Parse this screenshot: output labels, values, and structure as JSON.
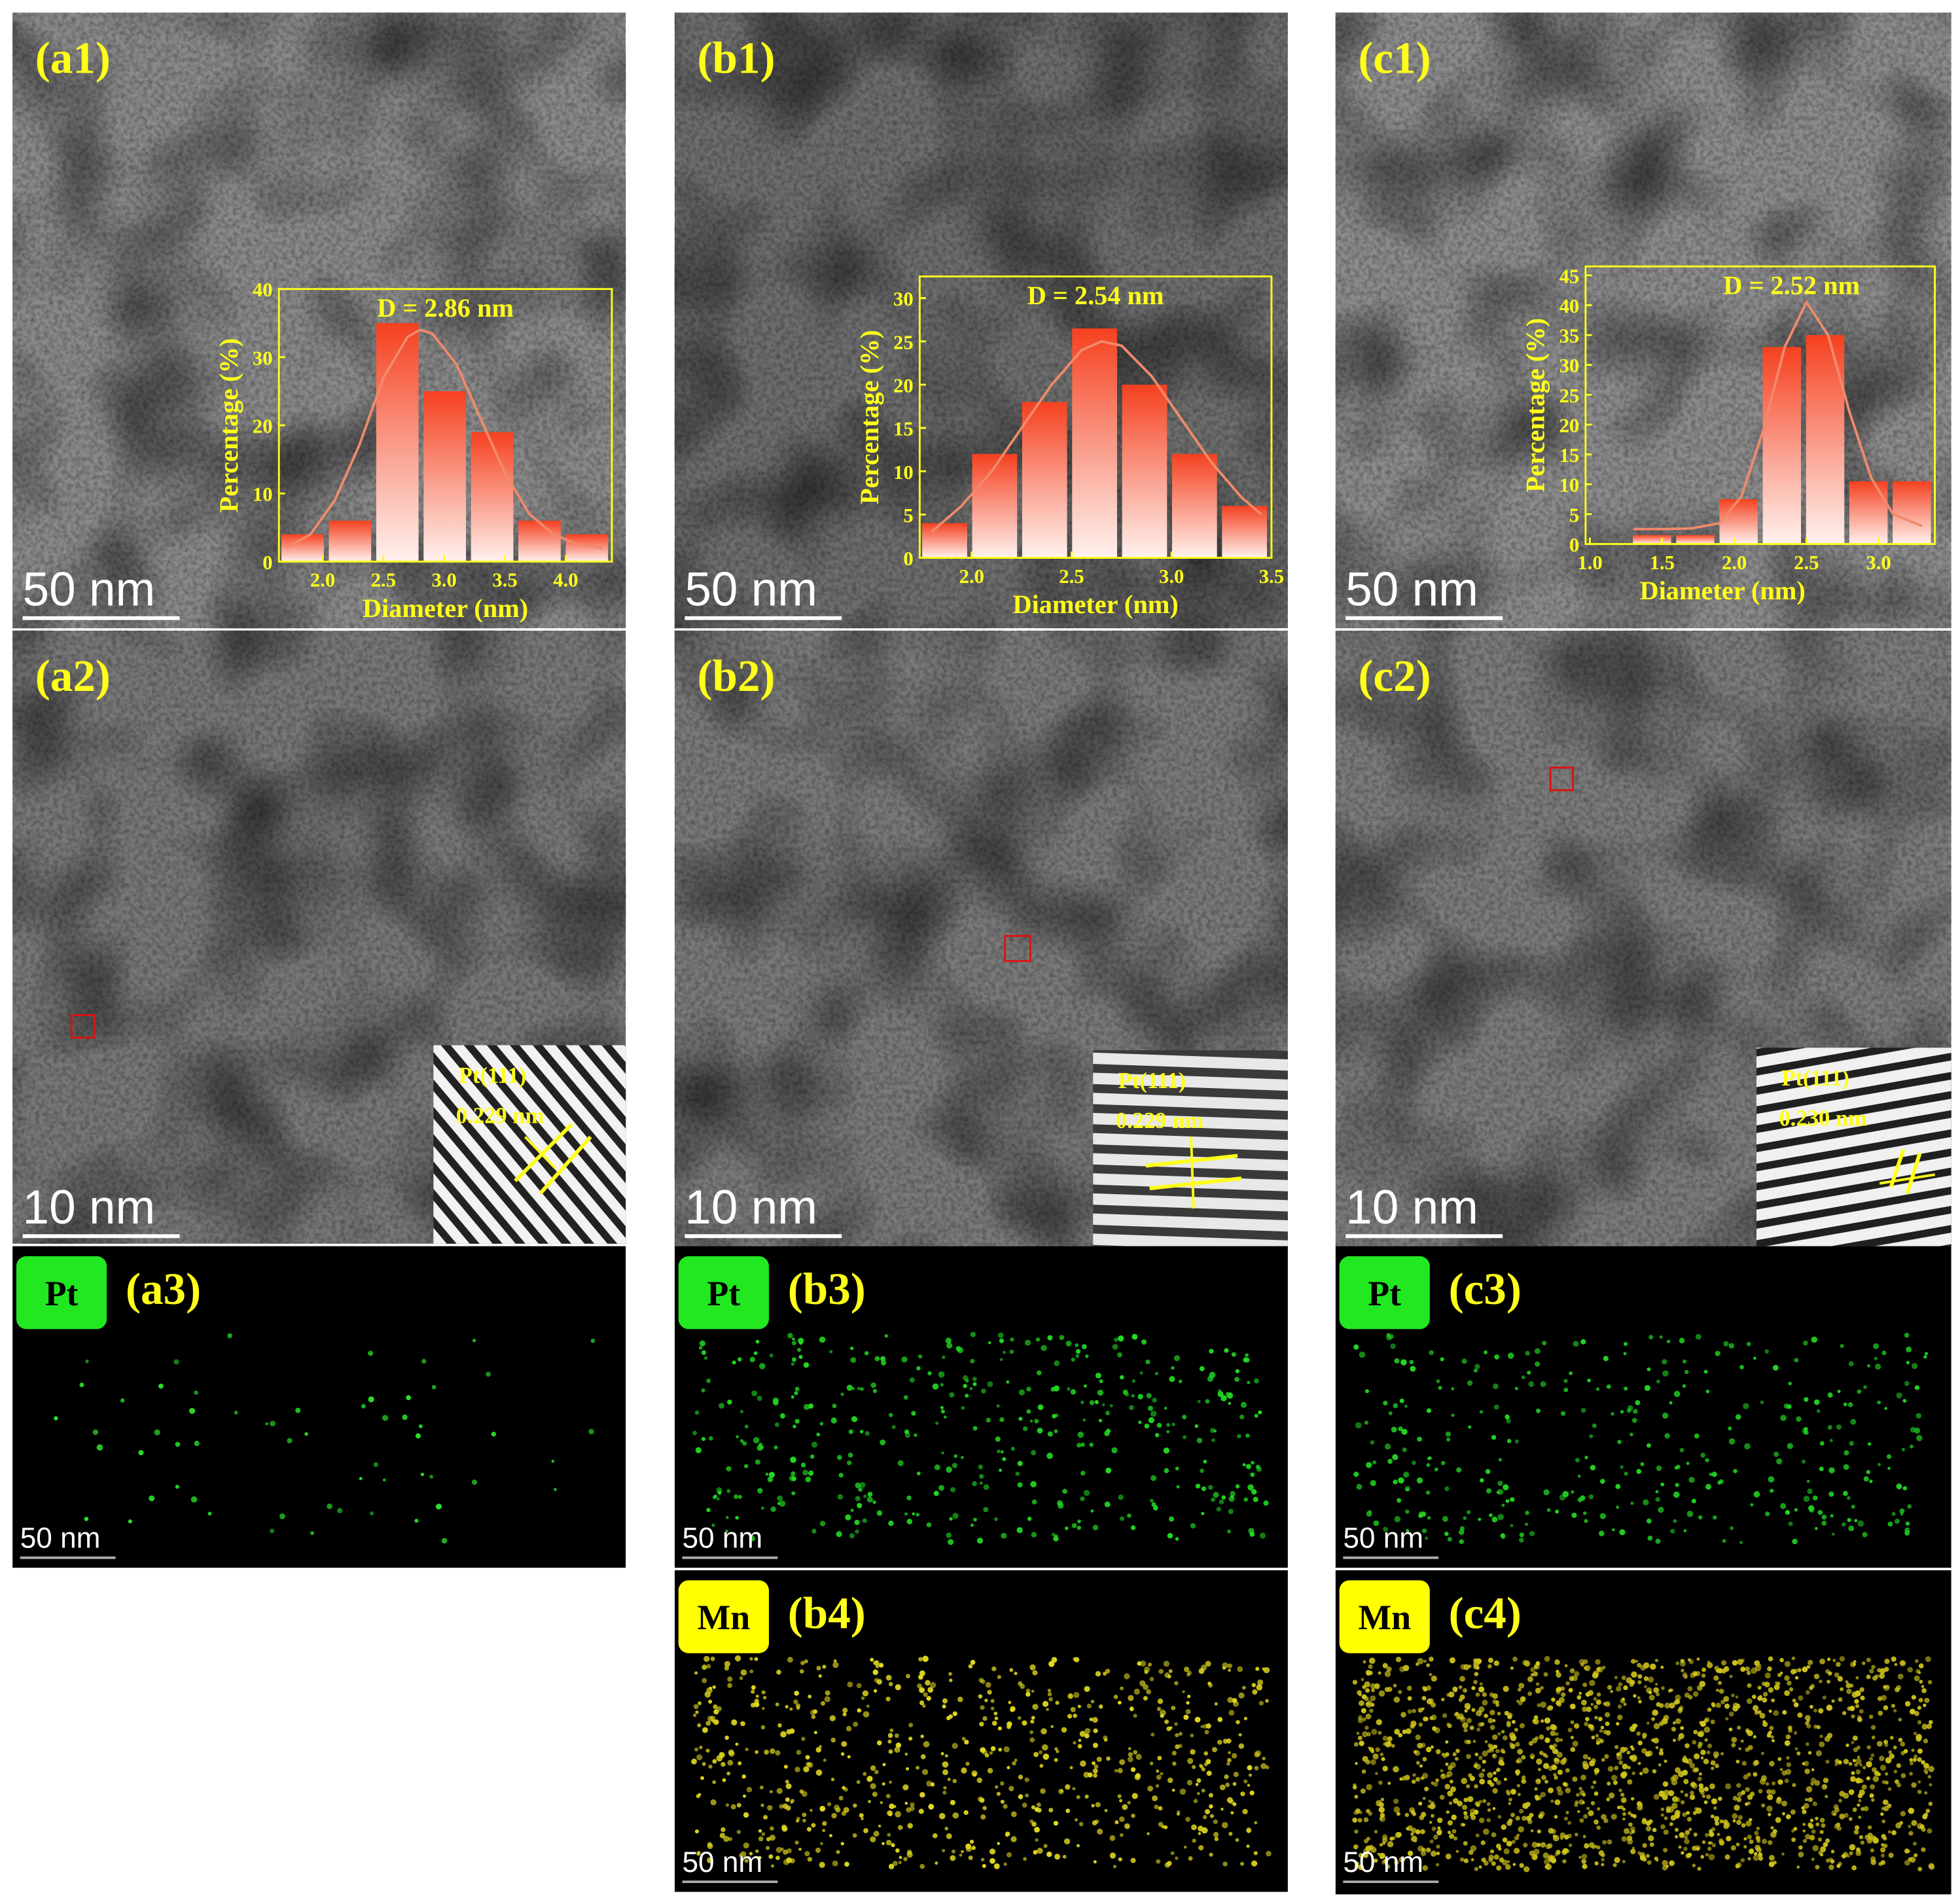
{
  "chart_data": [
    {
      "type": "histogram",
      "title": "D = 2.86 nm",
      "xlabel": "Diameter (nm)",
      "ylabel": "Percentage (%)",
      "bins": [
        1.64,
        2.03,
        2.42,
        2.81,
        3.2,
        3.59,
        3.98,
        4.37
      ],
      "values": [
        4,
        6,
        35,
        25,
        19,
        6,
        4
      ],
      "xlim": [
        1.64,
        4.38
      ],
      "ylim": [
        0,
        40
      ],
      "xticks": [
        {
          "value": 2,
          "label": "2.0"
        },
        {
          "value": 2.5,
          "label": "2.5"
        },
        {
          "value": 3,
          "label": "3.0"
        },
        {
          "value": 3.5,
          "label": "3.5"
        },
        {
          "value": 4,
          "label": "4.0"
        }
      ],
      "yticks": [
        0,
        10,
        20,
        30,
        40
      ],
      "color": "#f5401f",
      "fit": {
        "color": "#f08a6a",
        "x": [
          1.7,
          1.9,
          2.1,
          2.3,
          2.5,
          2.7,
          2.8,
          2.9,
          3.1,
          3.3,
          3.5,
          3.7,
          3.9,
          4.1,
          4.3
        ],
        "y": [
          2,
          4,
          9,
          17,
          27,
          33,
          34,
          33.5,
          29,
          21,
          13,
          7,
          4,
          2.5,
          2
        ]
      }
    },
    {
      "type": "histogram",
      "title": "D = 2.54 nm",
      "xlabel": "Diameter (nm)",
      "ylabel": "Percentage (%)",
      "bins": [
        1.74,
        1.99,
        2.24,
        2.49,
        2.74,
        2.99,
        3.24,
        3.49
      ],
      "values": [
        4,
        12,
        18,
        26.5,
        20,
        12,
        6
      ],
      "xlim": [
        1.74,
        3.5
      ],
      "ylim": [
        0,
        32.5
      ],
      "xticks": [
        {
          "value": 2,
          "label": "2.0"
        },
        {
          "value": 2.5,
          "label": "2.5"
        },
        {
          "value": 3,
          "label": "3.0"
        },
        {
          "value": 3.5,
          "label": "3.5"
        }
      ],
      "yticks": [
        0,
        5,
        10,
        15,
        20,
        25,
        30
      ],
      "color": "#f5401f",
      "fit": {
        "color": "#f08a6a",
        "x": [
          1.8,
          1.95,
          2.1,
          2.25,
          2.4,
          2.55,
          2.65,
          2.75,
          2.9,
          3.05,
          3.2,
          3.35,
          3.45
        ],
        "y": [
          3,
          6,
          10,
          15,
          20,
          24,
          25,
          24.5,
          21,
          16,
          11,
          7,
          5
        ]
      }
    },
    {
      "type": "histogram",
      "title": "D = 2.52 nm",
      "xlabel": "Diameter (nm)",
      "ylabel": "Percentage (%)",
      "bins": [
        1.28,
        1.58,
        1.88,
        2.18,
        2.48,
        2.78,
        3.08,
        3.38
      ],
      "values": [
        1.5,
        1.5,
        7.5,
        33,
        35,
        10.5,
        10.5
      ],
      "xlim": [
        0.97,
        3.39
      ],
      "ylim": [
        0,
        46.5
      ],
      "xticks": [
        {
          "value": 1,
          "label": "1.0"
        },
        {
          "value": 1.5,
          "label": "1.5"
        },
        {
          "value": 2,
          "label": "2.0"
        },
        {
          "value": 2.5,
          "label": "2.5"
        },
        {
          "value": 3,
          "label": "3.0"
        }
      ],
      "yticks": [
        0,
        5,
        10,
        15,
        20,
        25,
        30,
        35,
        40,
        45
      ],
      "color": "#f5401f",
      "fit": {
        "color": "#f08a6a",
        "x": [
          1.3,
          1.5,
          1.7,
          1.9,
          2.05,
          2.2,
          2.35,
          2.5,
          2.65,
          2.8,
          2.95,
          3.1,
          3.3
        ],
        "y": [
          2.5,
          2.5,
          2.6,
          3.5,
          8,
          19,
          33,
          40.5,
          35,
          22,
          11,
          5,
          3
        ]
      }
    }
  ],
  "tem": [
    {
      "label": "(a1)",
      "scale": "50 nm"
    },
    {
      "label": "(b1)",
      "scale": "50 nm"
    },
    {
      "label": "(c1)",
      "scale": "50 nm"
    },
    {
      "label": "(a2)",
      "scale": "10 nm"
    },
    {
      "label": "(b2)",
      "scale": "10 nm"
    },
    {
      "label": "(c2)",
      "scale": "10 nm"
    }
  ],
  "fringes": [
    {
      "plane": "Pt(111)",
      "spacing": "0.229 nm"
    },
    {
      "plane": "Pt(111)",
      "spacing": "0.229 nm"
    },
    {
      "plane": "Pt(111)",
      "spacing": "0.230 nm"
    }
  ],
  "maps": [
    {
      "element": "Pt",
      "label": "(a3)",
      "scale": "50 nm"
    },
    {
      "element": "Pt",
      "label": "(b3)",
      "scale": "50 nm"
    },
    {
      "element": "Pt",
      "label": "(c3)",
      "scale": "50 nm"
    },
    {
      "element": "Mn",
      "label": "(b4)",
      "scale": "50 nm"
    },
    {
      "element": "Mn",
      "label": "(c4)",
      "scale": "50 nm"
    }
  ]
}
